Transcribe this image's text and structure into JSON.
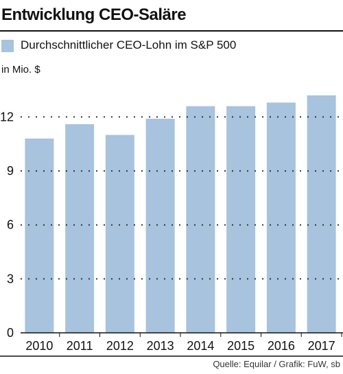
{
  "title": "Entwicklung CEO-Saläre",
  "legend": {
    "label": "Durchschnittlicher CEO-Lohn im S&P 500",
    "color": "#a7c3de"
  },
  "unit": "in Mio. $",
  "source": "Quelle: Equilar / Grafik: FuW, sb",
  "chart_data": {
    "type": "bar",
    "categories": [
      "2010",
      "2011",
      "2012",
      "2013",
      "2014",
      "2015",
      "2016",
      "2017"
    ],
    "series": [
      {
        "name": "Durchschnittlicher CEO-Lohn im S&P 500",
        "values": [
          10.8,
          11.6,
          11.0,
          11.9,
          12.6,
          12.6,
          12.8,
          13.2
        ]
      }
    ],
    "ylabel": "in Mio. $",
    "ylim": [
      0,
      14
    ],
    "yticks": [
      0,
      3,
      6,
      9,
      12
    ],
    "ytick_labels": [
      "0",
      "3",
      "6",
      "9",
      "12"
    ],
    "grid": true,
    "bar_color": "#a7c3de"
  }
}
